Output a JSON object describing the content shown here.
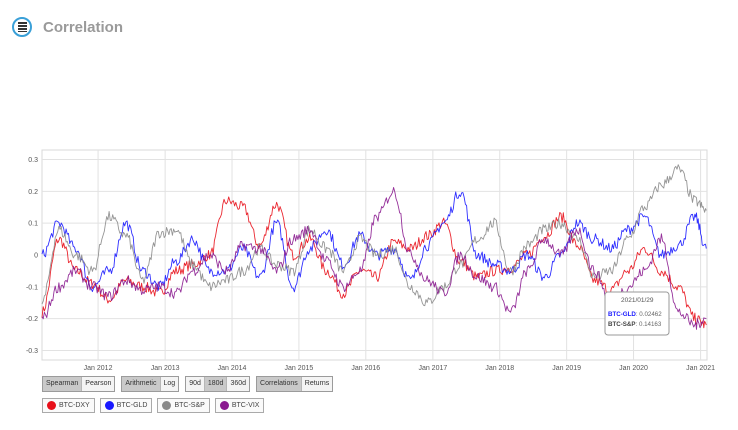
{
  "header": {
    "title": "Correlation",
    "logo_icon": "database-icon"
  },
  "buttons": {
    "method": [
      {
        "label": "Spearman",
        "active": true
      },
      {
        "label": "Pearson",
        "active": false
      }
    ],
    "scale": [
      {
        "label": "Arithmetic",
        "active": true
      },
      {
        "label": "Log",
        "active": false
      }
    ],
    "window": [
      {
        "label": "90d",
        "active": false
      },
      {
        "label": "180d",
        "active": true
      },
      {
        "label": "360d",
        "active": false
      }
    ],
    "mode": [
      {
        "label": "Correlations",
        "active": true
      },
      {
        "label": "Returns",
        "active": false
      }
    ]
  },
  "tooltip": {
    "date": "2021/01/29",
    "rows": [
      {
        "name": "BTC-GLD",
        "value": "0.02462",
        "color": "#1a1aff"
      },
      {
        "name": "BTC-S&P",
        "value": "0.14163",
        "color": "#444444"
      }
    ]
  },
  "chart_data": {
    "type": "line",
    "title": "",
    "xlabel": "",
    "ylabel": "",
    "x_tick_labels": [
      "Jan 2012",
      "Jan 2013",
      "Jan 2014",
      "Jan 2015",
      "Jan 2016",
      "Jan 2017",
      "Jan 2018",
      "Jan 2019",
      "Jan 2020",
      "Jan 2021"
    ],
    "y_tick_labels": [
      "0.3",
      "0.2",
      "0.1",
      "0",
      "-0.1",
      "-0.2",
      "-0.3"
    ],
    "ylim": [
      -0.33,
      0.33
    ],
    "xlim": [
      "2011-03-01",
      "2021-02-05"
    ],
    "grid": true,
    "series": [
      {
        "name": "BTC-DXY",
        "color": "#e8101a",
        "x": [
          "2011-03",
          "2011-06",
          "2011-09",
          "2011-12",
          "2012-03",
          "2012-06",
          "2012-09",
          "2012-12",
          "2013-03",
          "2013-06",
          "2013-09",
          "2013-12",
          "2014-03",
          "2014-06",
          "2014-09",
          "2014-12",
          "2015-03",
          "2015-06",
          "2015-09",
          "2015-12",
          "2016-03",
          "2016-06",
          "2016-09",
          "2016-12",
          "2017-03",
          "2017-06",
          "2017-09",
          "2017-12",
          "2018-03",
          "2018-06",
          "2018-09",
          "2018-12",
          "2019-03",
          "2019-06",
          "2019-09",
          "2019-12",
          "2020-03",
          "2020-06",
          "2020-09",
          "2020-12",
          "2021-02"
        ],
        "values": [
          -0.18,
          0.05,
          -0.05,
          -0.09,
          -0.14,
          -0.08,
          -0.1,
          -0.12,
          -0.05,
          -0.03,
          0.0,
          0.17,
          0.15,
          0.03,
          0.16,
          0.0,
          0.05,
          -0.05,
          -0.12,
          -0.05,
          -0.07,
          0.04,
          0.02,
          0.06,
          0.1,
          -0.02,
          -0.07,
          -0.05,
          -0.04,
          0.0,
          0.06,
          0.12,
          0.03,
          -0.08,
          -0.11,
          -0.05,
          0.02,
          -0.05,
          -0.1,
          -0.2,
          -0.22
        ]
      },
      {
        "name": "BTC-GLD",
        "color": "#1818ff",
        "x": [
          "2011-03",
          "2011-06",
          "2011-09",
          "2011-12",
          "2012-03",
          "2012-06",
          "2012-09",
          "2012-12",
          "2013-03",
          "2013-06",
          "2013-09",
          "2013-12",
          "2014-03",
          "2014-06",
          "2014-09",
          "2014-12",
          "2015-03",
          "2015-06",
          "2015-09",
          "2015-12",
          "2016-03",
          "2016-06",
          "2016-09",
          "2016-12",
          "2017-03",
          "2017-06",
          "2017-09",
          "2017-12",
          "2018-03",
          "2018-06",
          "2018-09",
          "2018-12",
          "2019-03",
          "2019-06",
          "2019-09",
          "2019-12",
          "2020-03",
          "2020-06",
          "2020-09",
          "2020-12",
          "2021-02"
        ],
        "values": [
          0.0,
          0.1,
          0.02,
          -0.1,
          -0.05,
          0.1,
          -0.05,
          -0.1,
          -0.02,
          0.05,
          -0.05,
          -0.05,
          0.02,
          -0.07,
          0.1,
          -0.1,
          0.02,
          0.08,
          -0.03,
          0.06,
          0.0,
          0.02,
          -0.08,
          0.03,
          0.1,
          0.2,
          0.0,
          -0.03,
          -0.05,
          0.0,
          -0.07,
          0.0,
          0.1,
          0.05,
          0.02,
          0.08,
          0.12,
          0.0,
          0.03,
          0.12,
          0.02
        ]
      },
      {
        "name": "BTC-S&P",
        "color": "#8a8a8a",
        "x": [
          "2011-03",
          "2011-06",
          "2011-09",
          "2011-12",
          "2012-03",
          "2012-06",
          "2012-09",
          "2012-12",
          "2013-03",
          "2013-06",
          "2013-09",
          "2013-12",
          "2014-03",
          "2014-06",
          "2014-09",
          "2014-12",
          "2015-03",
          "2015-06",
          "2015-09",
          "2015-12",
          "2016-03",
          "2016-06",
          "2016-09",
          "2016-12",
          "2017-03",
          "2017-06",
          "2017-09",
          "2017-12",
          "2018-03",
          "2018-06",
          "2018-09",
          "2018-12",
          "2019-03",
          "2019-06",
          "2019-09",
          "2019-12",
          "2020-03",
          "2020-06",
          "2020-09",
          "2020-12",
          "2021-02"
        ],
        "values": [
          -0.15,
          0.08,
          0.0,
          -0.05,
          0.12,
          0.06,
          -0.08,
          0.07,
          0.08,
          -0.03,
          -0.1,
          -0.08,
          -0.05,
          0.02,
          -0.03,
          -0.05,
          0.08,
          0.02,
          -0.05,
          0.05,
          0.0,
          0.02,
          -0.1,
          -0.15,
          -0.1,
          -0.03,
          0.05,
          0.1,
          -0.05,
          0.03,
          0.08,
          0.1,
          0.05,
          -0.07,
          -0.05,
          0.05,
          0.15,
          0.22,
          0.27,
          0.17,
          0.14
        ]
      },
      {
        "name": "BTC-VIX",
        "color": "#8a1a8f",
        "x": [
          "2011-03",
          "2011-06",
          "2011-09",
          "2011-12",
          "2012-03",
          "2012-06",
          "2012-09",
          "2012-12",
          "2013-03",
          "2013-06",
          "2013-09",
          "2013-12",
          "2014-03",
          "2014-06",
          "2014-09",
          "2014-12",
          "2015-03",
          "2015-06",
          "2015-09",
          "2015-12",
          "2016-03",
          "2016-06",
          "2016-09",
          "2016-12",
          "2017-03",
          "2017-06",
          "2017-09",
          "2017-12",
          "2018-03",
          "2018-06",
          "2018-09",
          "2018-12",
          "2019-03",
          "2019-06",
          "2019-09",
          "2019-12",
          "2020-03",
          "2020-06",
          "2020-09",
          "2020-12",
          "2021-02"
        ],
        "values": [
          -0.2,
          -0.1,
          -0.05,
          -0.1,
          -0.13,
          -0.08,
          -0.11,
          -0.1,
          -0.12,
          -0.05,
          0.0,
          -0.05,
          0.03,
          0.02,
          -0.05,
          0.05,
          0.08,
          -0.02,
          -0.1,
          -0.05,
          0.12,
          0.2,
          0.0,
          -0.08,
          -0.12,
          0.0,
          -0.07,
          -0.1,
          -0.18,
          -0.05,
          0.05,
          0.0,
          0.08,
          -0.05,
          -0.15,
          -0.1,
          -0.05,
          0.05,
          -0.18,
          -0.22,
          -0.2
        ]
      }
    ]
  }
}
